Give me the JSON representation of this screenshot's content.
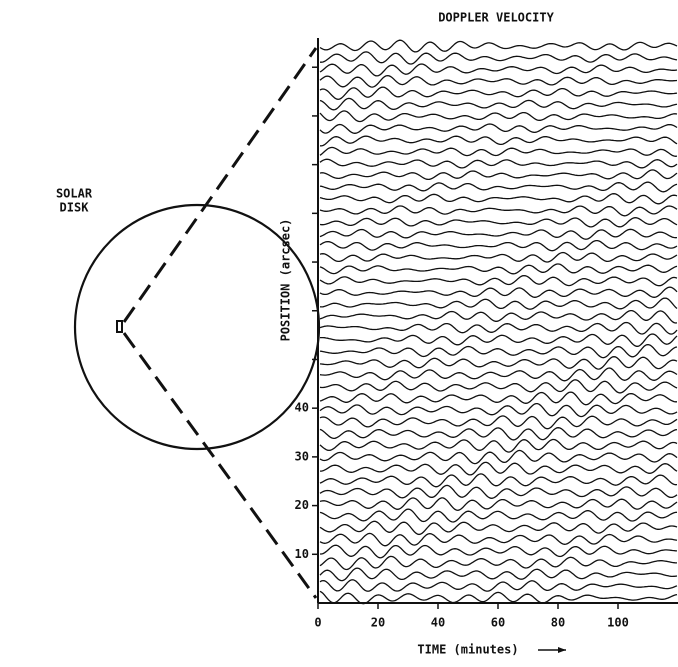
{
  "chart_data": {
    "type": "line",
    "title": "DOPPLER VELOCITY",
    "inset_label": [
      "SOLAR",
      "DISK"
    ],
    "x_label": "TIME  (minutes)",
    "y_label": "POSITION  (arcsec)",
    "xlim": [
      0,
      120
    ],
    "xticks": [
      0,
      20,
      40,
      60,
      80,
      100
    ],
    "ylim": [
      0,
      116
    ],
    "yticks": [
      10,
      20,
      30,
      40
    ],
    "minor_yticks": [
      50,
      60,
      70,
      80,
      90,
      100,
      110
    ]
  }
}
